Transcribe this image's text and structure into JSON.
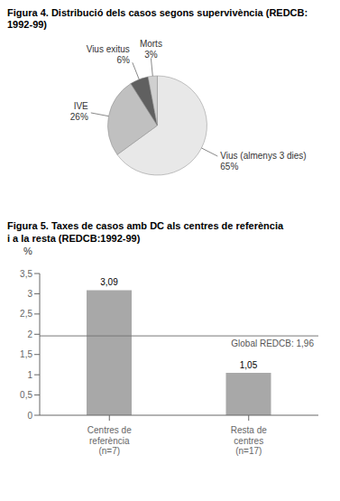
{
  "chart_data": [
    {
      "type": "pie",
      "title": "Figura 4. Distribució dels casos segons supervivència (REDCB:\n1992-99)",
      "categories": [
        "Vius (almenys 3 dies)",
        "IVE",
        "Vius exitus",
        "Morts"
      ],
      "values": [
        65,
        26,
        6,
        3
      ],
      "value_labels": [
        "65%",
        "26%",
        "6%",
        "3%"
      ],
      "colors": [
        "#e8e8e8",
        "#c0c0c0",
        "#606060",
        "#d0d0d0"
      ],
      "data_labels": true
    },
    {
      "type": "bar",
      "title": "Figura 5. Taxes de casos amb DC als centres de referència\ni a la resta (REDCB:1992-99)",
      "categories": [
        "Centres de\nreferència\n(n=7)",
        "Resta de\ncentres\n(n=17)"
      ],
      "values": [
        3.09,
        1.05
      ],
      "value_labels": [
        "3,09",
        "1,05"
      ],
      "data_labels": true,
      "color": "#a8a8a8",
      "ylabel": "%",
      "ylim": [
        0,
        3.5
      ],
      "yticks": [
        0,
        {
          "value": 0.5,
          "label": "0,5"
        },
        1,
        {
          "value": 1.5,
          "label": "1,5"
        },
        2,
        {
          "value": 2.5,
          "label": "2,5"
        },
        3,
        {
          "value": 3.5,
          "label": "3,5"
        }
      ],
      "reference_line": {
        "value": 1.96,
        "label": "Global REDCB: 1,96"
      },
      "grid": false
    }
  ]
}
